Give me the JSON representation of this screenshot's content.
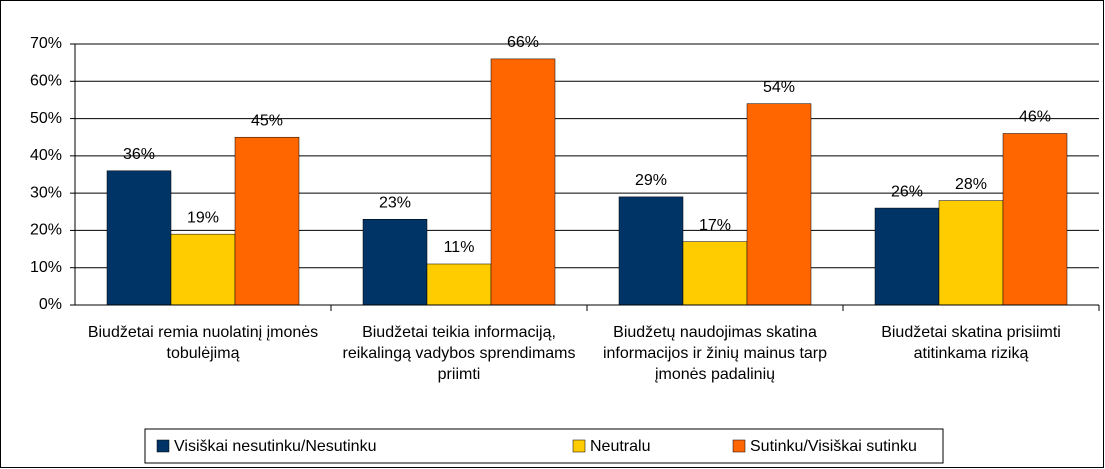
{
  "chart_data": {
    "type": "bar",
    "categories": [
      "Biudžetai remia nuolatinį įmonės tobulėjimą",
      "Biudžetai teikia informaciją, reikalingą vadybos sprendimams priimti",
      "Biudžetų naudojimas skatina informacijos ir žinių mainus tarp įmonės padalinių",
      "Biudžetai skatina prisiimti atitinkama riziką"
    ],
    "series": [
      {
        "name": "Visiškai nesutinku/Nesutinku",
        "color": "#003366",
        "values": [
          36,
          23,
          29,
          26
        ],
        "value_labels": [
          "36%",
          "23%",
          "29%",
          "26%"
        ]
      },
      {
        "name": "Neutralu",
        "color": "#ffcc00",
        "values": [
          19,
          11,
          17,
          28
        ],
        "value_labels": [
          "19%",
          "11%",
          "17%",
          "28%"
        ]
      },
      {
        "name": "Sutinku/Visiškai sutinku",
        "color": "#ff6600",
        "values": [
          45,
          66,
          54,
          46
        ],
        "value_labels": [
          "45%",
          "66%",
          "54%",
          "46%"
        ]
      }
    ],
    "ylim": [
      0,
      70
    ],
    "yticks": [
      {
        "value": 0,
        "label": "0%"
      },
      {
        "value": 10,
        "label": "10%"
      },
      {
        "value": 20,
        "label": "20%"
      },
      {
        "value": 30,
        "label": "30%"
      },
      {
        "value": 40,
        "label": "40%"
      },
      {
        "value": 50,
        "label": "50%"
      },
      {
        "value": 60,
        "label": "60%"
      },
      {
        "value": 70,
        "label": "70%"
      }
    ],
    "grid": true,
    "legend": "bottom"
  }
}
